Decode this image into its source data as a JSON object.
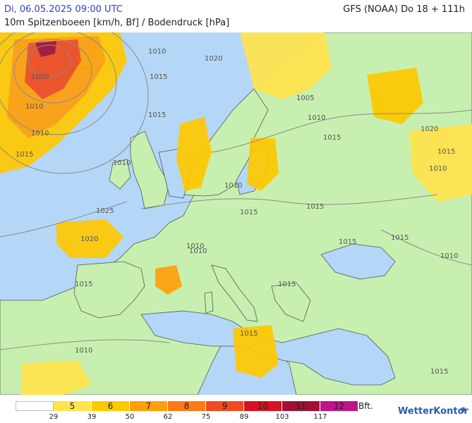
{
  "header": {
    "datetime": "Di, 06.05.2025 09:00 UTC",
    "model_run": "GFS (NOAA) Do 18 + 111h",
    "subtitle": "10m Spitzenboeen [km/h, Bf] / Bodendruck [hPa]"
  },
  "map": {
    "isobar_labels": [
      "1020",
      "1010",
      "1000",
      "1010",
      "1015",
      "1010",
      "1015",
      "1020",
      "1015",
      "1005",
      "1010",
      "1015",
      "1010",
      "1010",
      "1015",
      "1025",
      "1020",
      "1015",
      "1010",
      "1015",
      "1015",
      "1010",
      "1015",
      "1010",
      "1010",
      "1010",
      "1015",
      "1015",
      "1015",
      "1015"
    ],
    "colors": {
      "sea": "#b4d7f7",
      "land": "#c7f0b0",
      "coast": "#555555",
      "isobar": "#8a8a8a"
    }
  },
  "legend": {
    "bft_classes": [
      "",
      "5",
      "6",
      "7",
      "8",
      "9",
      "10",
      "11",
      "12"
    ],
    "colors": [
      "#ffffff",
      "#ffe44d",
      "#ffc800",
      "#ff9f0a",
      "#ff7a14",
      "#f04a1e",
      "#d8101f",
      "#a11034",
      "#c0138a"
    ],
    "unit": "Bft.",
    "kmh_thresholds": [
      "29",
      "39",
      "50",
      "62",
      "75",
      "89",
      "103",
      "117"
    ]
  },
  "brand": {
    "name": "WetterKontor",
    "icon": "rays-icon"
  }
}
